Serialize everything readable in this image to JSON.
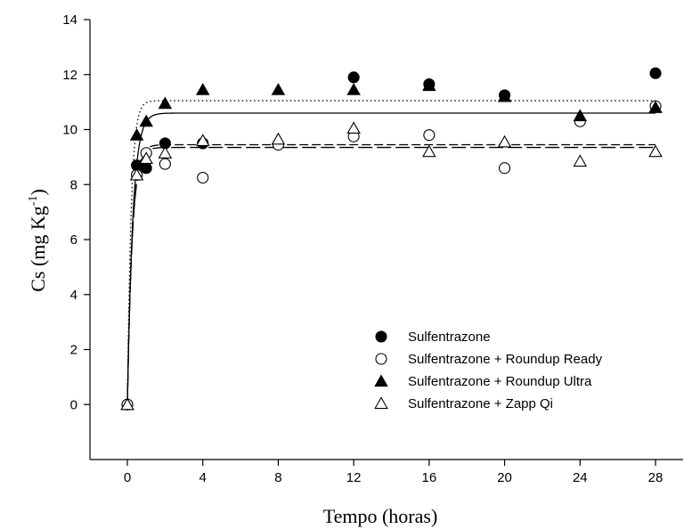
{
  "chart_data": {
    "type": "scatter",
    "xlabel": "Tempo (horas)",
    "ylabel": {
      "base": "Cs (mg Kg",
      "sup": "-1",
      "close": ")"
    },
    "xlim": [
      -2,
      29
    ],
    "ylim": [
      -2,
      14
    ],
    "xticks": [
      0,
      4,
      8,
      12,
      16,
      20,
      24,
      28
    ],
    "yticks": [
      0,
      2,
      4,
      6,
      8,
      10,
      12,
      14
    ],
    "grid": false,
    "legend_position": "bottom-right",
    "series": [
      {
        "name": "Sulfentrazone",
        "marker": "circle",
        "filled": true,
        "fit_line": "dotted",
        "fit": {
          "qmax": 11.05,
          "k": 5
        },
        "points": [
          [
            0,
            0
          ],
          [
            0.5,
            8.7
          ],
          [
            1,
            8.6
          ],
          [
            2,
            9.5
          ],
          [
            4,
            9.5
          ],
          [
            12,
            11.9
          ],
          [
            16,
            11.65
          ],
          [
            20,
            11.25
          ],
          [
            28,
            12.05
          ]
        ]
      },
      {
        "name": "Sulfentrazone + Roundup Ready",
        "marker": "circle",
        "filled": false,
        "fit_line": "long-dash",
        "fit": {
          "qmax": 9.35,
          "k": 4
        },
        "points": [
          [
            0,
            0
          ],
          [
            0.5,
            8.35
          ],
          [
            1,
            9.15
          ],
          [
            2,
            8.75
          ],
          [
            4,
            8.25
          ],
          [
            8,
            9.45
          ],
          [
            12,
            9.75
          ],
          [
            16,
            9.8
          ],
          [
            20,
            8.6
          ],
          [
            24,
            10.3
          ],
          [
            28,
            10.85
          ]
        ]
      },
      {
        "name": "Sulfentrazone + Roundup Ultra",
        "marker": "triangle",
        "filled": true,
        "fit_line": "solid",
        "fit": {
          "qmax": 10.6,
          "k": 3.5
        },
        "points": [
          [
            0,
            0
          ],
          [
            0.5,
            9.8
          ],
          [
            1,
            10.3
          ],
          [
            2,
            10.95
          ],
          [
            4,
            11.45
          ],
          [
            8,
            11.45
          ],
          [
            12,
            11.45
          ],
          [
            16,
            11.6
          ],
          [
            20,
            11.2
          ],
          [
            24,
            10.5
          ],
          [
            28,
            10.8
          ]
        ]
      },
      {
        "name": "Sulfentrazone + Zapp Qi",
        "marker": "triangle",
        "filled": false,
        "fit_line": "dash",
        "fit": {
          "qmax": 9.45,
          "k": 4
        },
        "points": [
          [
            0,
            0
          ],
          [
            0.5,
            8.35
          ],
          [
            1,
            8.95
          ],
          [
            2,
            9.15
          ],
          [
            4,
            9.6
          ],
          [
            8,
            9.65
          ],
          [
            12,
            10.05
          ],
          [
            16,
            9.2
          ],
          [
            20,
            9.55
          ],
          [
            24,
            8.85
          ],
          [
            28,
            9.2
          ]
        ]
      }
    ]
  }
}
